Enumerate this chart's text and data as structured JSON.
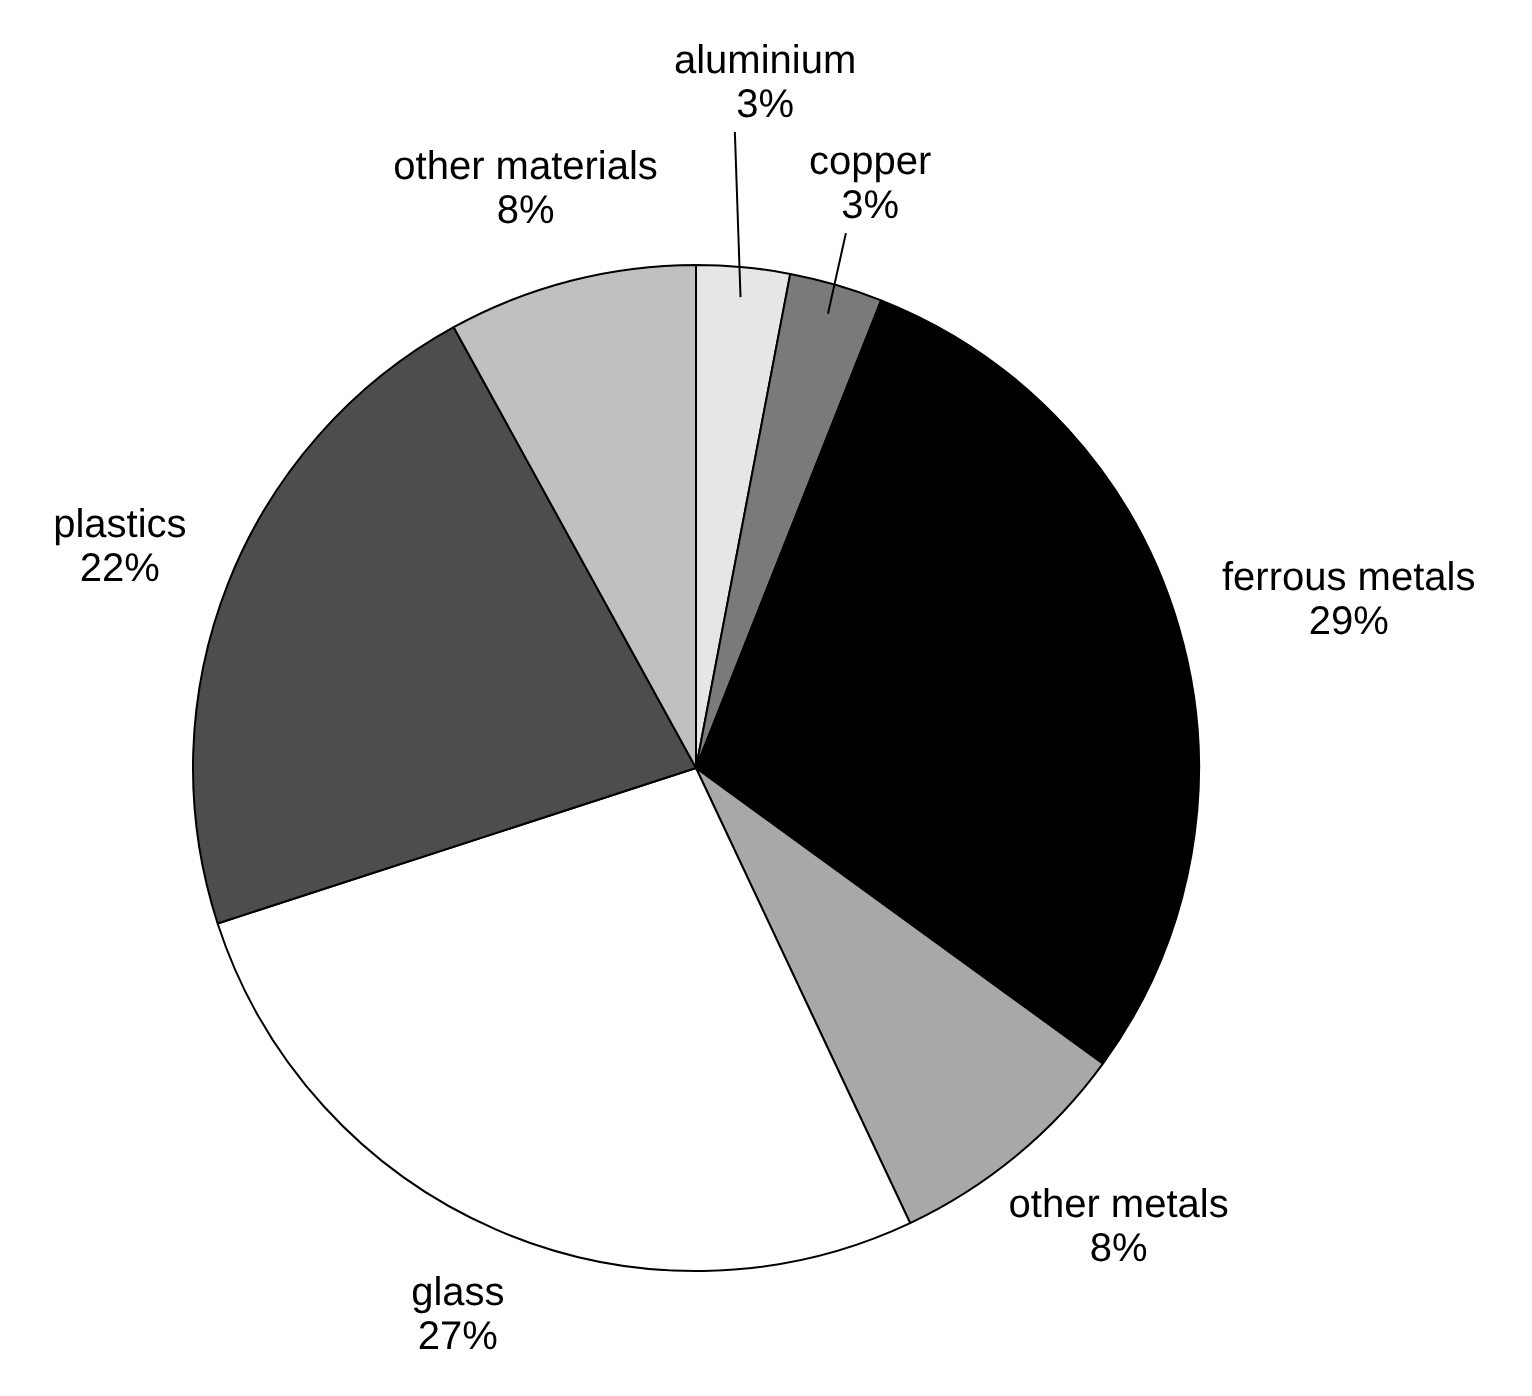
{
  "chart_data": {
    "type": "pie",
    "categories": [
      "aluminium",
      "copper",
      "ferrous metals",
      "other metals",
      "glass",
      "plastics",
      "other materials"
    ],
    "values": [
      3,
      3,
      29,
      8,
      27,
      22,
      8
    ],
    "value_labels": [
      "3%",
      "3%",
      "29%",
      "8%",
      "27%",
      "22%",
      "8%"
    ],
    "colors": [
      "#e6e6e6",
      "#7a7a7a",
      "#000000",
      "#a8a8a8",
      "#ffffff",
      "#4d4d4d",
      "#c0c0c0"
    ],
    "legend": false
  }
}
